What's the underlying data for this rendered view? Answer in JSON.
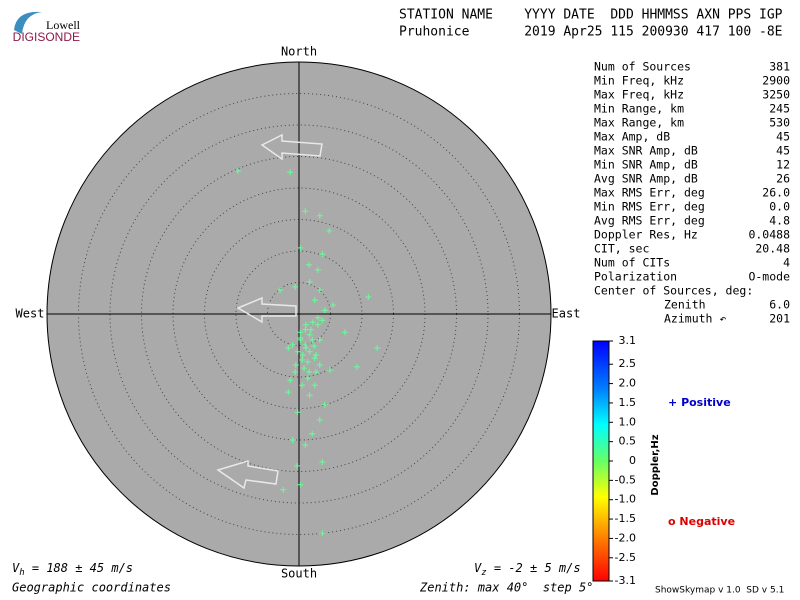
{
  "logo": {
    "top": "Lowell",
    "bottom": "DIGISONDE"
  },
  "header": {
    "labels": "STATION NAME    YYYY DATE  DDD HHMMSS AXN PPS IGP",
    "values": "Pruhonice       2019 Apr25 115 200930 417 100 -8E"
  },
  "stats": [
    [
      "Num of Sources",
      "381"
    ],
    [
      "Min Freq, kHz",
      "2900"
    ],
    [
      "Max Freq, kHz",
      "3250"
    ],
    [
      "Min Range, km",
      "245"
    ],
    [
      "Max Range, km",
      "530"
    ],
    [
      "Max Amp, dB",
      "45"
    ],
    [
      "Max SNR Amp, dB",
      "45"
    ],
    [
      "Min SNR Amp, dB",
      "12"
    ],
    [
      "Avg SNR Amp, dB",
      "26"
    ],
    [
      "Max RMS Err, deg",
      "26.0"
    ],
    [
      "Min RMS Err, deg",
      "0.0"
    ],
    [
      "Avg RMS Err, deg",
      "4.8"
    ],
    [
      "Doppler Res, Hz",
      "0.0488"
    ],
    [
      "CIT, sec",
      "20.48"
    ],
    [
      "Num of CITs",
      "4"
    ],
    [
      "Polarization",
      "O-mode"
    ]
  ],
  "center": {
    "title": "Center of Sources, deg:",
    "rows": [
      [
        "Zenith",
        "6.0"
      ],
      [
        "Azimuth ↶",
        "201"
      ]
    ]
  },
  "chart_data": {
    "type": "skymap",
    "directions": {
      "north": "North",
      "south": "South",
      "east": "East",
      "west": "West"
    },
    "xlim": [
      -40,
      40
    ],
    "ylim": [
      -40,
      40
    ],
    "rticks": [
      5,
      10,
      15,
      20,
      25,
      30,
      35,
      40
    ],
    "series": [
      {
        "name": "Positive",
        "marker": "+",
        "color": "#66ff99",
        "x": [
          -9.7,
          -1.4,
          1.0,
          3.3,
          4.8,
          0.2,
          3.7,
          1.6,
          3.0,
          -3.0,
          -0.6,
          1.7,
          3.3,
          5.4,
          11.0,
          2.5,
          4.1,
          3.0,
          7.3,
          12.4,
          -1.7,
          0.2,
          1.0,
          1.7,
          2.5,
          0.5,
          3.3,
          -0.6,
          1.4,
          4.9,
          9.2,
          -1.7,
          1.7,
          4.1,
          -0.2,
          3.3,
          -1.0,
          1.0,
          2.1,
          -0.3,
          3.7,
          -2.5,
          0.2,
          3.7,
          1.0,
          1.7,
          0.2,
          2.1,
          1.1,
          -0.2,
          2.4,
          0.6,
          1.4,
          -0.5,
          2.7,
          0.8,
          1.9,
          3.0,
          3.7,
          2.2,
          1.1,
          0.2,
          2.7,
          -1.0,
          3.3,
          1.6,
          0.5,
          2.5,
          -1.4
        ],
        "y": [
          22.7,
          22.5,
          16.3,
          15.6,
          13.2,
          10.5,
          9.5,
          7.8,
          7.0,
          3.8,
          4.3,
          5.1,
          3.8,
          1.4,
          2.7,
          2.2,
          0.6,
          -0.6,
          -2.9,
          -5.4,
          -5.4,
          -4.1,
          -4.9,
          -6.0,
          -7.0,
          -7.3,
          -8.1,
          -9.2,
          -10.2,
          -8.9,
          -8.4,
          -12.4,
          -12.9,
          -14.4,
          -15.6,
          -16.8,
          -20.0,
          -20.8,
          -19.0,
          -24.1,
          -23.5,
          -27.9,
          -27.1,
          -34.8,
          -2.5,
          -3.3,
          -3.8,
          -4.1,
          -5.4,
          -6.0,
          -5.1,
          -6.5,
          -7.6,
          -8.1,
          -9.2,
          -8.6,
          -2.5,
          -1.7,
          -1.0,
          -1.3,
          -1.7,
          -2.9,
          -6.5,
          -4.9,
          -4.1,
          -9.2,
          -11.3,
          -11.3,
          -10.5
        ]
      },
      {
        "name": "Negative",
        "marker": "o",
        "color": "#dd0000",
        "x": [],
        "y": []
      }
    ],
    "colorbar": {
      "label": "Doppler,Hz",
      "lim": [
        -3.1,
        3.1
      ],
      "ticks": [
        3.1,
        2.5,
        {
          "value": 2,
          "label": "2.0"
        },
        1.5,
        {
          "value": 1,
          "label": "1.0"
        },
        0.5,
        0,
        -0.5,
        {
          "value": -1,
          "label": "-1.0"
        },
        -1.5,
        {
          "value": -2,
          "label": "-2.0"
        },
        -2.5,
        -3.1
      ]
    },
    "positive_color": "#0000cc",
    "vh": {
      "symbol": "V",
      "sub": "h",
      "text": " = 188 ± 45 m/s"
    },
    "vz": {
      "symbol": "V",
      "sub": "z",
      "text": " = -2 ± 5 m/s"
    },
    "coords": "Geographic coordinates",
    "zenith_note": "Zenith: max 40°  step 5°",
    "version": "ShowSkymap v 1.0  SD v 5.1"
  }
}
